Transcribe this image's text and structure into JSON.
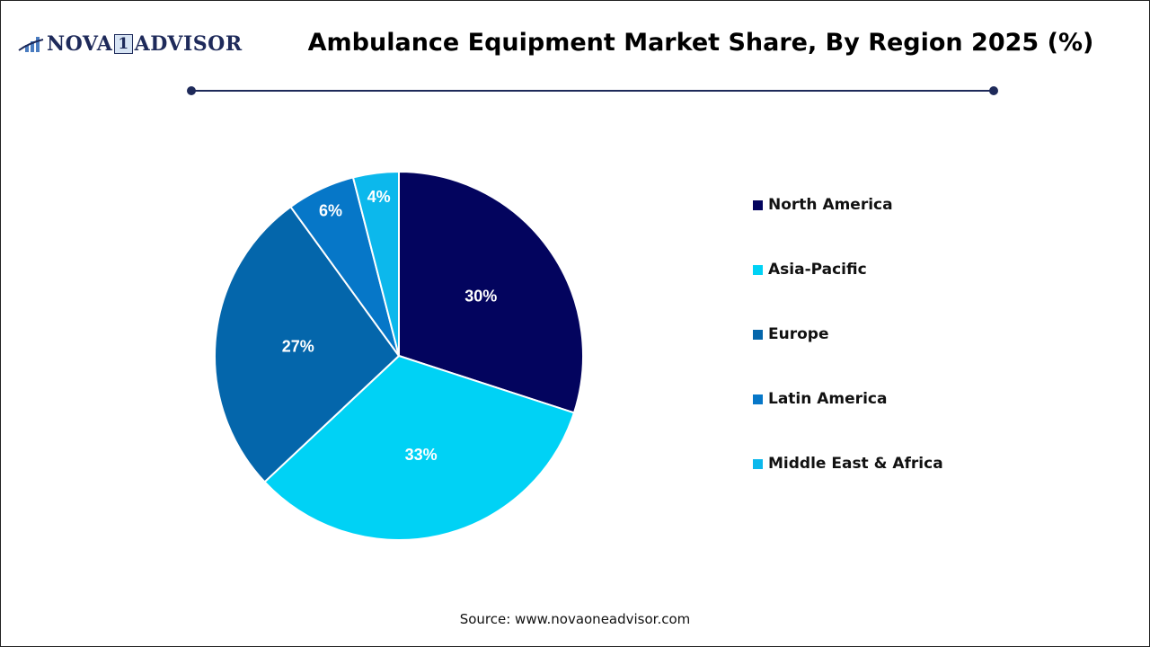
{
  "logo": {
    "text_left": "NOVA",
    "text_mid": "1",
    "text_right": "ADVISOR"
  },
  "chart_data": {
    "type": "pie",
    "title": "Ambulance Equipment Market Share, By Region 2025 (%)",
    "categories": [
      "North America",
      "Asia-Pacific",
      "Europe",
      "Latin America",
      "Middle East & Africa"
    ],
    "values": [
      30,
      33,
      27,
      6,
      4
    ],
    "data_labels": [
      "30%",
      "33%",
      "27%",
      "6%",
      "4%"
    ],
    "colors": [
      "#03045e",
      "#00d2f5",
      "#0466ab",
      "#0677c8",
      "#0cb8ec"
    ],
    "legend_position": "right",
    "start_angle": "top, clockwise"
  },
  "source": "Source: www.novaoneadvisor.com"
}
